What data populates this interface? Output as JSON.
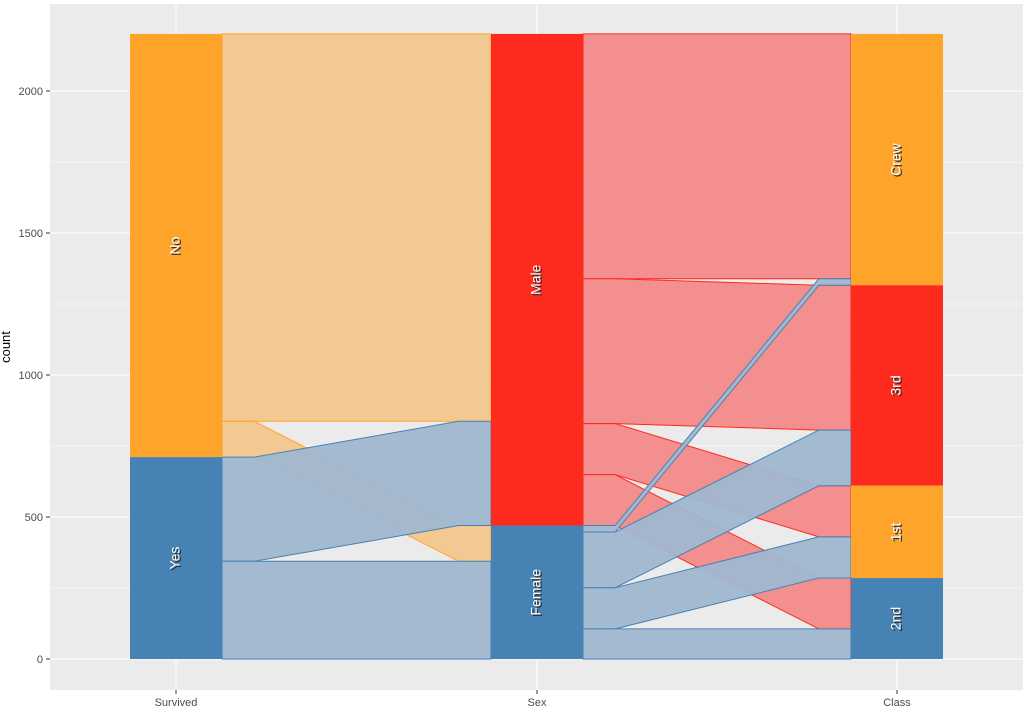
{
  "chart_data": {
    "type": "alluvial",
    "ylabel": "count",
    "ylim": [
      -110,
      2201
    ],
    "y_ticks": [
      0,
      500,
      1000,
      1500,
      2000
    ],
    "grid": true,
    "legend": "none",
    "axes": [
      {
        "name": "Survived",
        "strata": [
          {
            "label": "No",
            "count": 1490,
            "color": "#FFA42B"
          },
          {
            "label": "Yes",
            "count": 711,
            "color": "#4682B4"
          }
        ]
      },
      {
        "name": "Sex",
        "strata": [
          {
            "label": "Male",
            "count": 1731,
            "color": "#FF2A1E"
          },
          {
            "label": "Female",
            "count": 470,
            "color": "#4682B4"
          }
        ]
      },
      {
        "name": "Class",
        "strata": [
          {
            "label": "Crew",
            "count": 885,
            "color": "#FFA42B"
          },
          {
            "label": "3rd",
            "count": 706,
            "color": "#FF2A1E"
          },
          {
            "label": "1st",
            "count": 325,
            "color": "#FFA42B"
          },
          {
            "label": "2nd",
            "count": 285,
            "color": "#4682B4"
          }
        ]
      }
    ],
    "flows_survived_sex": [
      {
        "from": "No",
        "to": "Male",
        "count": 1364,
        "color": "#F3C78D",
        "stroke": "#FFA42B"
      },
      {
        "from": "No",
        "to": "Female",
        "count": 126,
        "color": "#F3C78D",
        "stroke": "#FFA42B"
      },
      {
        "from": "Yes",
        "to": "Male",
        "count": 367,
        "color": "#A0B7D0",
        "stroke": "#4682B4"
      },
      {
        "from": "Yes",
        "to": "Female",
        "count": 344,
        "color": "#A0B7D0",
        "stroke": "#4682B4"
      }
    ],
    "flows_sex_class": [
      {
        "from": "Male",
        "to": "Crew",
        "count": 862,
        "color": "#F38A89",
        "stroke": "#FF2A1E"
      },
      {
        "from": "Male",
        "to": "3rd",
        "count": 510,
        "color": "#F38A89",
        "stroke": "#FF2A1E"
      },
      {
        "from": "Male",
        "to": "1st",
        "count": 180,
        "color": "#F38A89",
        "stroke": "#FF2A1E"
      },
      {
        "from": "Male",
        "to": "2nd",
        "count": 179,
        "color": "#F38A89",
        "stroke": "#FF2A1E"
      },
      {
        "from": "Female",
        "to": "Crew",
        "count": 23,
        "color": "#A0B7D0",
        "stroke": "#4682B4"
      },
      {
        "from": "Female",
        "to": "3rd",
        "count": 196,
        "color": "#A0B7D0",
        "stroke": "#4682B4"
      },
      {
        "from": "Female",
        "to": "1st",
        "count": 145,
        "color": "#A0B7D0",
        "stroke": "#4682B4"
      },
      {
        "from": "Female",
        "to": "2nd",
        "count": 106,
        "color": "#A0B7D0",
        "stroke": "#4682B4"
      }
    ]
  }
}
